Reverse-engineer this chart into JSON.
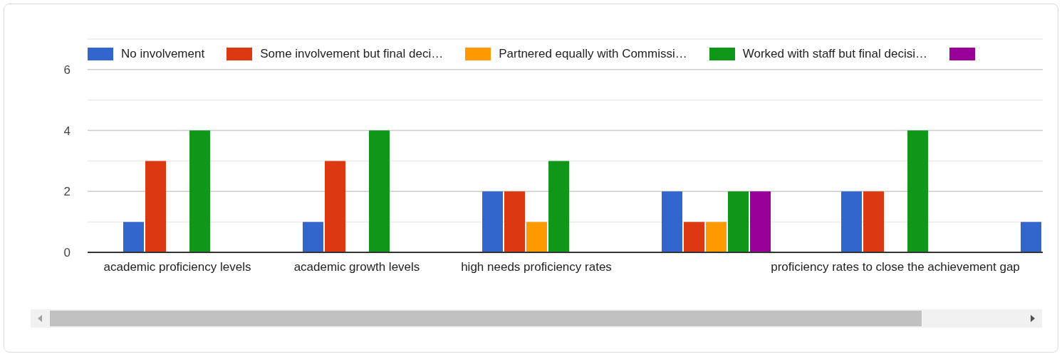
{
  "chart_data": {
    "type": "bar",
    "categories": [
      "academic proficiency levels",
      "academic growth levels",
      "high needs proficiency rates",
      null,
      "proficiency rates to close the achievement gap",
      null
    ],
    "series": [
      {
        "name": "No involvement",
        "color": "#3366cc",
        "values": [
          1,
          1,
          2,
          2,
          2,
          1
        ]
      },
      {
        "name": "Some involvement but final deci…",
        "color": "#dc3912",
        "values": [
          3,
          3,
          2,
          1,
          2,
          null
        ]
      },
      {
        "name": "Partnered equally with Commissi…",
        "color": "#ff9900",
        "values": [
          0,
          0,
          1,
          1,
          0,
          null
        ]
      },
      {
        "name": "Worked with staff but final decisi…",
        "color": "#109618",
        "values": [
          4,
          4,
          3,
          2,
          4,
          null
        ]
      },
      {
        "color": "#990099",
        "values": [
          0,
          0,
          0,
          2,
          0,
          null
        ]
      }
    ],
    "ylim": [
      0,
      7
    ],
    "yticks": [
      0,
      {
        "value": 1,
        "label": null
      },
      2,
      {
        "value": 3,
        "label": null
      },
      4,
      {
        "value": 5,
        "label": null
      },
      6,
      {
        "value": 7,
        "label": null
      }
    ],
    "grid": true,
    "legend": "top"
  }
}
